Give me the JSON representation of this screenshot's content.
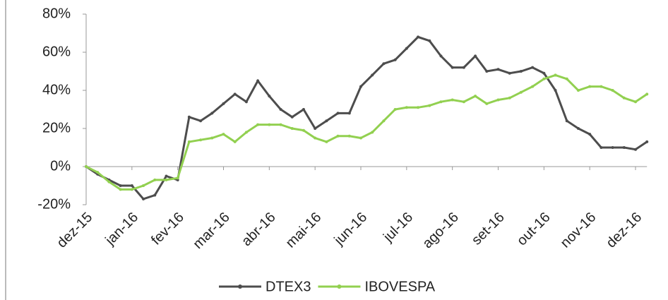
{
  "chart_data": {
    "type": "line",
    "categories": [
      "dez-15",
      null,
      null,
      null,
      "jan-16",
      null,
      null,
      null,
      "fev-16",
      null,
      null,
      null,
      "mar-16",
      null,
      null,
      null,
      "abr-16",
      null,
      null,
      null,
      "mai-16",
      null,
      null,
      null,
      "jun-16",
      null,
      null,
      null,
      "jul-16",
      null,
      null,
      null,
      "ago-16",
      null,
      null,
      null,
      "set-16",
      null,
      null,
      null,
      "out-16",
      null,
      null,
      null,
      "nov-16",
      null,
      null,
      null,
      "dez-16",
      null
    ],
    "series": [
      {
        "name": "DTEX3",
        "color": "#4d4d4d",
        "values": [
          0,
          -4,
          -7,
          -10,
          -10,
          -17,
          -15,
          -5,
          -7,
          26,
          24,
          28,
          33,
          38,
          34,
          45,
          37,
          30,
          26,
          30,
          20,
          24,
          28,
          28,
          42,
          48,
          54,
          56,
          62,
          68,
          66,
          58,
          52,
          52,
          58,
          50,
          51,
          49,
          50,
          52,
          49,
          40,
          24,
          20,
          17,
          10,
          10,
          10,
          9,
          13
        ]
      },
      {
        "name": "IBOVESPA",
        "color": "#92d050",
        "values": [
          0,
          -3,
          -8,
          -12,
          -12,
          -10,
          -7,
          -7,
          -6,
          13,
          14,
          15,
          17,
          13,
          18,
          22,
          22,
          22,
          20,
          19,
          15,
          13,
          16,
          16,
          15,
          18,
          24,
          30,
          31,
          31,
          32,
          34,
          35,
          34,
          37,
          33,
          35,
          36,
          39,
          42,
          46,
          48,
          46,
          40,
          42,
          42,
          40,
          36,
          34,
          38
        ]
      }
    ],
    "ylim": [
      -20,
      80
    ],
    "yticks": [
      {
        "value": -20,
        "label": "-20%"
      },
      {
        "value": 0,
        "label": "0%"
      },
      {
        "value": 20,
        "label": "20%"
      },
      {
        "value": 40,
        "label": "40%"
      },
      {
        "value": 60,
        "label": "60%"
      },
      {
        "value": 80,
        "label": "80%"
      }
    ],
    "grid": false,
    "legend": "bottom"
  }
}
